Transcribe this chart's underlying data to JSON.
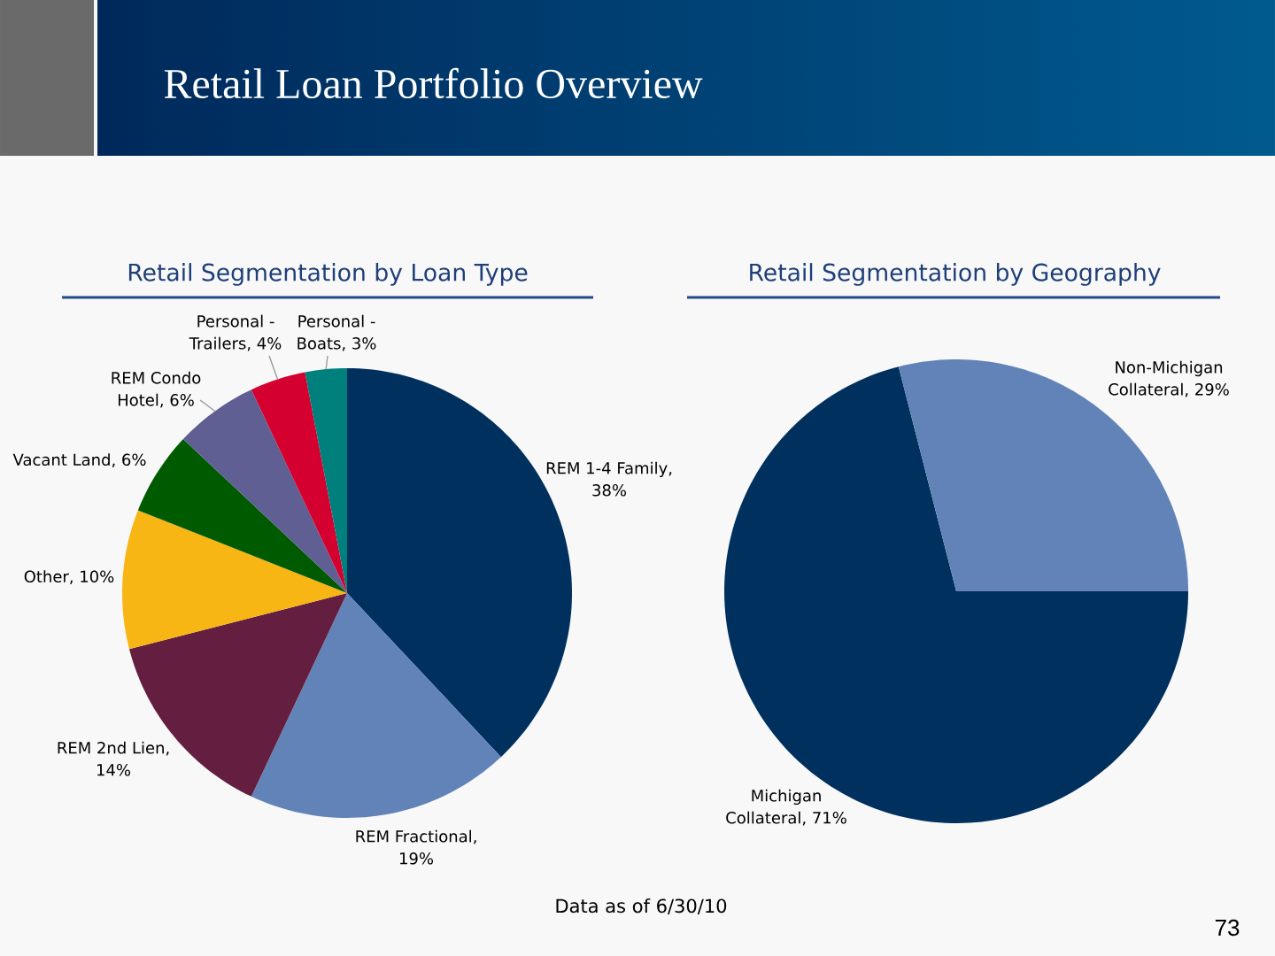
{
  "chart_data": [
    {
      "type": "pie",
      "title": "Retail Segmentation by Loan Type",
      "categories": [
        null,
        null,
        null,
        null,
        null,
        null,
        null,
        null
      ],
      "values": [
        38,
        19,
        14,
        10,
        6,
        6,
        4,
        3
      ],
      "colors": [
        "#00305e",
        "#6283b8",
        "#641e3f",
        "#f7b614",
        "#005a00",
        "#5f5f94",
        "#d4002f",
        "#00807c"
      ],
      "value_labels": [
        "REM 1-4 Family, 38%",
        "REM Fractional, 19%",
        "REM 2nd Lien, 14%",
        "Other, 10%",
        "Vacant Land, 6%",
        "REM Condo Hotel, 6%",
        "Personal - Trailers, 4%",
        "Personal - Boats, 3%"
      ],
      "annotations": [
        "Retail Loan Portfolio Overview",
        "Data as of 6/30/10"
      ]
    },
    {
      "type": "pie",
      "title": "Retail Segmentation by Geography",
      "categories": [
        null,
        null
      ],
      "values": [
        71,
        29
      ],
      "colors": [
        "#00305e",
        "#6283b8"
      ],
      "value_labels": [
        "Michigan Collateral, 71%",
        "Non-Michigan Collateral, 29%"
      ],
      "annotations": [
        "73"
      ]
    }
  ]
}
